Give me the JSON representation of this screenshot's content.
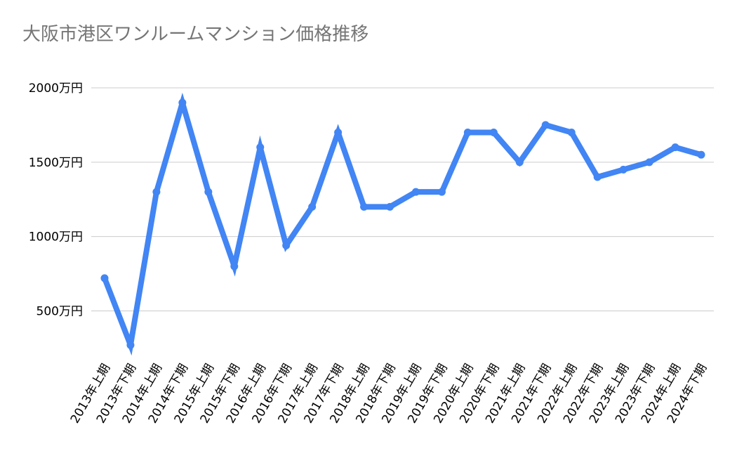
{
  "chart_data": {
    "type": "line",
    "title": "大阪市港区ワンルームマンション価格推移",
    "xlabel": "",
    "ylabel": "",
    "categories": [
      "2013年上期",
      "2013年下期",
      "2014年上期",
      "2014年下期",
      "2015年上期",
      "2015年下期",
      "2016年上期",
      "2016年下期",
      "2017年上期",
      "2017年下期",
      "2018年上期",
      "2018年下期",
      "2019年上期",
      "2019年下期",
      "2020年上期",
      "2020年下期",
      "2021年上期",
      "2021年下期",
      "2022年上期",
      "2022年下期",
      "2023年上期",
      "2023年下期",
      "2024年上期",
      "2024年下期"
    ],
    "series": [
      {
        "values": [
          720,
          270,
          1300,
          1900,
          1300,
          800,
          1600,
          940,
          1200,
          1700,
          1200,
          1200,
          1300,
          1300,
          1700,
          1700,
          1500,
          1750,
          1700,
          1400,
          1450,
          1500,
          1600,
          1550
        ],
        "color": "#4285f4"
      }
    ],
    "ylim": [
      200,
      2000
    ],
    "yticks": [
      {
        "value": 500,
        "label": "500万円"
      },
      {
        "value": 1000,
        "label": "1000万円"
      },
      {
        "value": 1500,
        "label": "1500万円"
      },
      {
        "value": 2000,
        "label": "2000万円"
      }
    ],
    "grid": true,
    "legend": "none"
  }
}
